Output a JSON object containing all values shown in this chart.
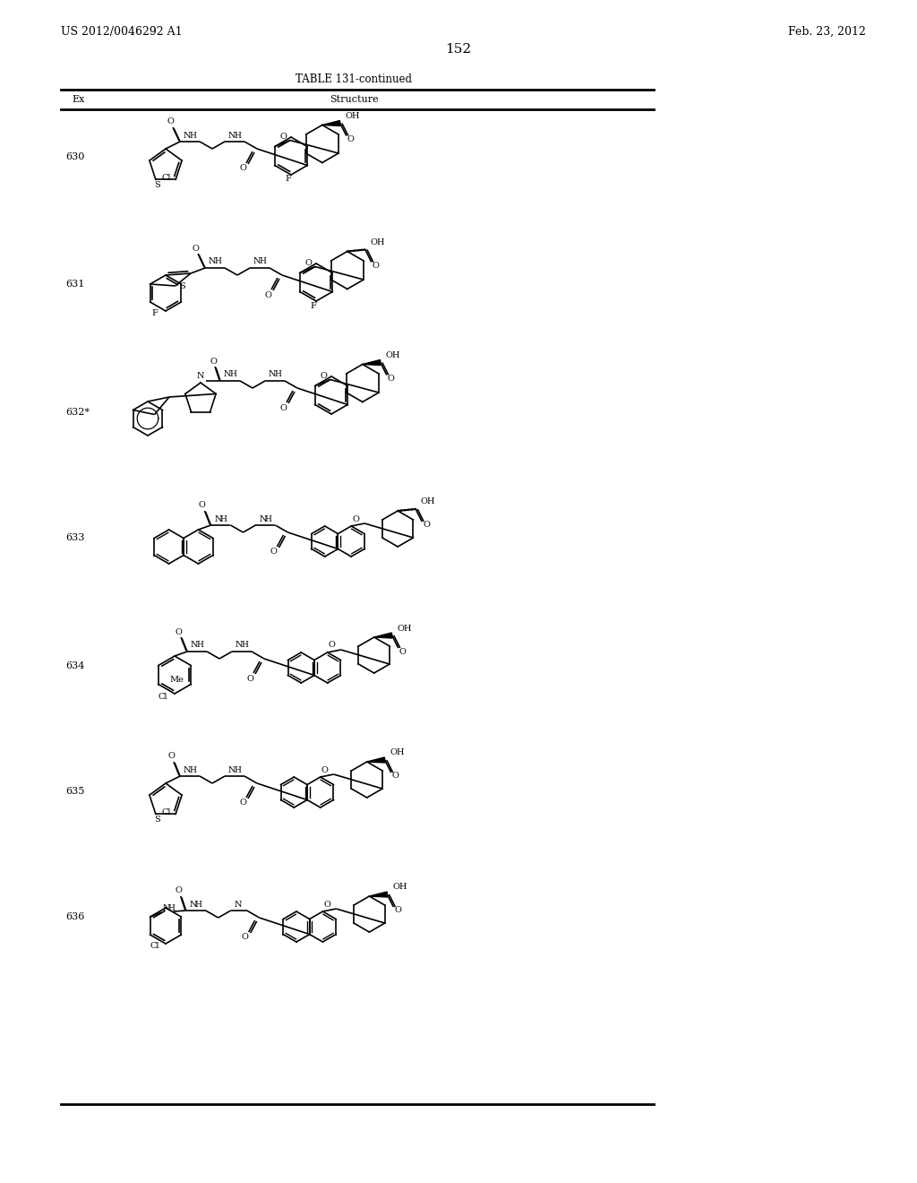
{
  "page_number": "152",
  "patent_number": "US 2012/0046292 A1",
  "patent_date": "Feb. 23, 2012",
  "table_title": "TABLE 131-continued",
  "col_ex": "Ex",
  "col_structure": "Structure",
  "background_color": "#ffffff",
  "entries": [
    "630",
    "631",
    "632*",
    "633",
    "634",
    "635",
    "636"
  ]
}
